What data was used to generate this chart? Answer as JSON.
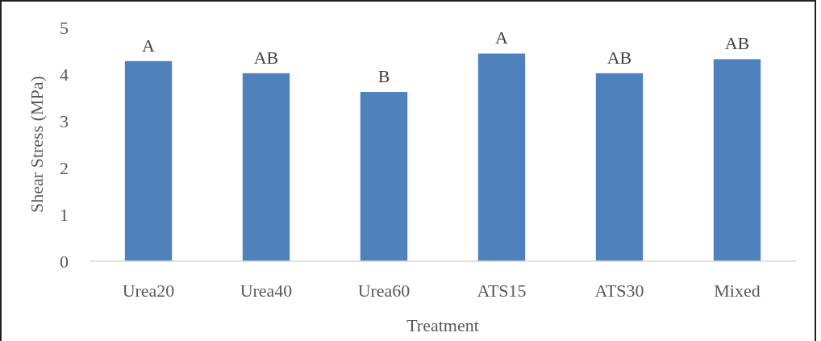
{
  "chart_data": {
    "type": "bar",
    "xlabel": "Treatment",
    "ylabel": "Shear Stress (MPa)",
    "categories": [
      "Urea20",
      "Urea40",
      "Urea60",
      "ATS15",
      "ATS30",
      "Mixed"
    ],
    "values": [
      4.28,
      4.02,
      3.62,
      4.44,
      4.02,
      4.32
    ],
    "color": "#4f81bd",
    "ylim": [
      0,
      5
    ],
    "yticks": [
      0,
      1,
      2,
      3,
      4,
      5
    ],
    "grid": false,
    "annotations": [
      {
        "text": "A",
        "x": "Urea20",
        "y": 4.28
      },
      {
        "text": "AB",
        "x": "Urea40",
        "y": 4.02
      },
      {
        "text": "B",
        "x": "Urea60",
        "y": 3.62
      },
      {
        "text": "A",
        "x": "ATS15",
        "y": 4.44
      },
      {
        "text": "AB",
        "x": "ATS30",
        "y": 4.02
      },
      {
        "text": "AB",
        "x": "Mixed",
        "y": 4.32
      }
    ]
  }
}
